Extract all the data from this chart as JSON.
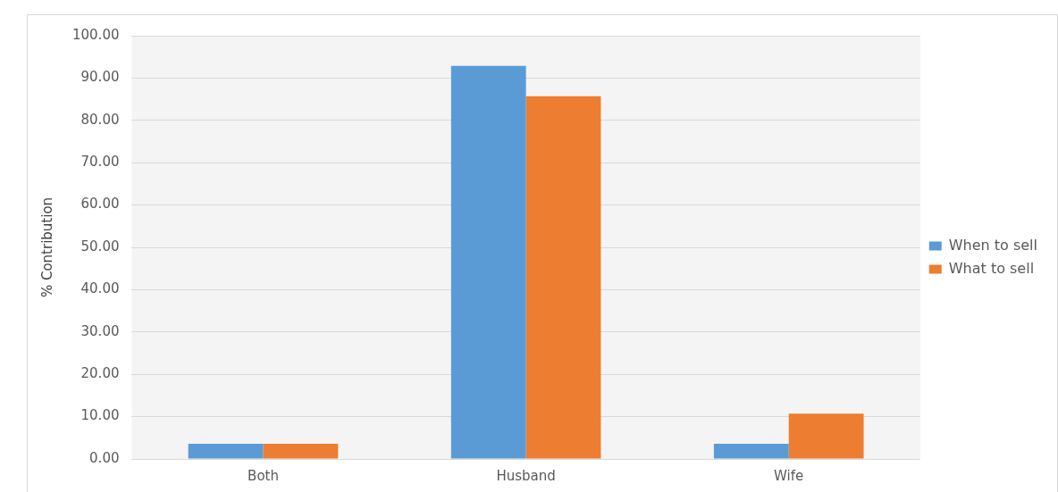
{
  "chart_data": {
    "type": "bar",
    "ylabel": "% Contribution",
    "categories": [
      "Both",
      "Husband",
      "Wife"
    ],
    "series": [
      {
        "name": "When to sell",
        "color": "#5b9bd5",
        "values": [
          3.6,
          92.9,
          3.6
        ]
      },
      {
        "name": "What to sell",
        "color": "#ed7d31",
        "values": [
          3.6,
          85.7,
          10.7
        ]
      }
    ],
    "ylim": [
      0,
      100
    ],
    "yticks": [
      {
        "value": 0,
        "label": "0.00"
      },
      {
        "value": 10,
        "label": "10.00"
      },
      {
        "value": 20,
        "label": "20.00"
      },
      {
        "value": 30,
        "label": "30.00"
      },
      {
        "value": 40,
        "label": "40.00"
      },
      {
        "value": 50,
        "label": "50.00"
      },
      {
        "value": 60,
        "label": "60.00"
      },
      {
        "value": 70,
        "label": "70.00"
      },
      {
        "value": 80,
        "label": "80.00"
      },
      {
        "value": 90,
        "label": "90.00"
      },
      {
        "value": 100,
        "label": "100.00"
      }
    ],
    "grid": "y",
    "legend": "right"
  }
}
